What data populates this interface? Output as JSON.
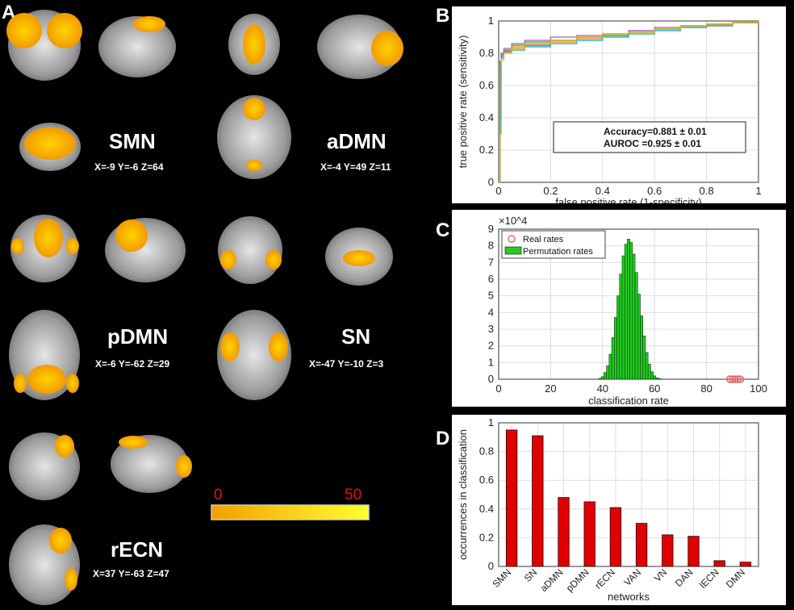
{
  "panel_a": {
    "letter": "A",
    "networks": [
      {
        "name": "SMN",
        "coords": "X=-9 Y=-6 Z=64"
      },
      {
        "name": "aDMN",
        "coords": "X=-4 Y=49 Z=11"
      },
      {
        "name": "pDMN",
        "coords": "X=-6 Y=-62 Z=29"
      },
      {
        "name": "SN",
        "coords": "X=-47 Y=-10 Z=3"
      },
      {
        "name": "rECN",
        "coords": "X=37 Y=-63 Z=47"
      }
    ],
    "colorbar": {
      "min": "0",
      "max": "50"
    }
  },
  "colors": {
    "activation": "#f5a300",
    "bar": "#e00000",
    "hist": "#22cc22",
    "real_rate": "#e06a6a"
  },
  "chart_data": [
    {
      "panel": "B",
      "type": "line",
      "xlabel": "false positive rate (1-specificity)",
      "ylabel": "true positive rate (sensitivity)",
      "xlim": [
        0,
        1
      ],
      "ylim": [
        0,
        1
      ],
      "xticks": [
        "0",
        "0.2",
        "0.4",
        "0.6",
        "0.8",
        "1"
      ],
      "yticks": [
        "0",
        "0.2",
        "0.4",
        "0.6",
        "0.8",
        "1"
      ],
      "grid": true,
      "annotation": [
        "Accuracy=0.881 ± 0.01",
        "AUROC   =0.925 ± 0.01"
      ],
      "series": [
        {
          "color": "#1f77b4",
          "x": [
            0,
            0.005,
            0.01,
            0.02,
            0.05,
            0.1,
            0.2,
            0.3,
            0.4,
            0.5,
            0.6,
            0.7,
            0.8,
            0.9,
            1
          ],
          "y": [
            0,
            0.7,
            0.78,
            0.81,
            0.82,
            0.84,
            0.86,
            0.88,
            0.9,
            0.92,
            0.94,
            0.96,
            0.97,
            0.99,
            1
          ]
        },
        {
          "color": "#ff7f0e",
          "x": [
            0,
            0.005,
            0.01,
            0.02,
            0.05,
            0.1,
            0.2,
            0.3,
            0.4,
            0.5,
            0.6,
            0.7,
            0.8,
            0.9,
            1
          ],
          "y": [
            0,
            0.4,
            0.8,
            0.82,
            0.84,
            0.86,
            0.87,
            0.89,
            0.91,
            0.93,
            0.95,
            0.96,
            0.98,
            0.99,
            1
          ]
        },
        {
          "color": "#2ca02c",
          "x": [
            0,
            0.005,
            0.01,
            0.02,
            0.05,
            0.1,
            0.2,
            0.3,
            0.4,
            0.5,
            0.6,
            0.7,
            0.8,
            0.9,
            1
          ],
          "y": [
            0,
            0.75,
            0.8,
            0.82,
            0.85,
            0.87,
            0.88,
            0.9,
            0.91,
            0.93,
            0.95,
            0.97,
            0.98,
            0.99,
            1
          ]
        },
        {
          "color": "#d62728",
          "x": [
            0,
            0.005,
            0.01,
            0.02,
            0.05,
            0.1,
            0.2,
            0.3,
            0.4,
            0.5,
            0.6,
            0.7,
            0.8,
            0.9,
            1
          ],
          "y": [
            0,
            0.65,
            0.79,
            0.81,
            0.83,
            0.85,
            0.88,
            0.9,
            0.92,
            0.94,
            0.95,
            0.97,
            0.98,
            0.99,
            1
          ]
        },
        {
          "color": "#9467bd",
          "x": [
            0,
            0.005,
            0.01,
            0.02,
            0.05,
            0.1,
            0.2,
            0.3,
            0.4,
            0.5,
            0.6,
            0.7,
            0.8,
            0.9,
            1
          ],
          "y": [
            0,
            0.72,
            0.8,
            0.83,
            0.86,
            0.88,
            0.9,
            0.91,
            0.92,
            0.94,
            0.96,
            0.97,
            0.98,
            0.99,
            1
          ]
        },
        {
          "color": "#17becf",
          "x": [
            0,
            0.005,
            0.01,
            0.02,
            0.05,
            0.1,
            0.2,
            0.3,
            0.4,
            0.5,
            0.6,
            0.7,
            0.8,
            0.9,
            1
          ],
          "y": [
            0,
            0.68,
            0.77,
            0.8,
            0.82,
            0.84,
            0.86,
            0.88,
            0.9,
            0.92,
            0.94,
            0.96,
            0.98,
            0.99,
            1
          ]
        },
        {
          "color": "#e8b400",
          "x": [
            0,
            0.005,
            0.01,
            0.02,
            0.05,
            0.1,
            0.2,
            0.3,
            0.4,
            0.5,
            0.6,
            0.7,
            0.8,
            0.9,
            1
          ],
          "y": [
            0,
            0.3,
            0.76,
            0.8,
            0.83,
            0.86,
            0.88,
            0.9,
            0.92,
            0.93,
            0.95,
            0.97,
            0.98,
            0.99,
            1
          ]
        }
      ]
    },
    {
      "panel": "C",
      "type": "bar",
      "xlabel": "classification rate",
      "exponent": "×10^4",
      "xlim": [
        0,
        100
      ],
      "ylim": [
        0,
        9
      ],
      "xticks": [
        "0",
        "20",
        "40",
        "60",
        "80",
        "100"
      ],
      "yticks": [
        "0",
        "1",
        "2",
        "3",
        "4",
        "5",
        "6",
        "7",
        "8",
        "9"
      ],
      "grid": true,
      "legend": [
        "Real rates",
        "Permutation rates"
      ],
      "legend_position": "top-left",
      "hist_x": [
        39,
        40,
        41,
        42,
        43,
        44,
        45,
        46,
        47,
        48,
        49,
        50,
        51,
        52,
        53,
        54,
        55,
        56,
        57,
        58,
        59,
        60,
        61,
        62
      ],
      "hist_y": [
        0.05,
        0.15,
        0.4,
        0.8,
        1.5,
        2.5,
        3.7,
        5.0,
        6.3,
        7.4,
        8.1,
        8.4,
        8.2,
        7.5,
        6.4,
        5.1,
        3.8,
        2.6,
        1.6,
        0.9,
        0.45,
        0.2,
        0.08,
        0.03
      ],
      "real_rates": [
        89,
        90,
        91,
        92,
        93
      ]
    },
    {
      "panel": "D",
      "type": "bar",
      "xlabel": "networks",
      "ylabel": "occurrences in classification",
      "ylim": [
        0,
        1
      ],
      "yticks": [
        "0",
        "0.2",
        "0.4",
        "0.6",
        "0.8",
        "1"
      ],
      "grid": true,
      "categories": [
        "SMN",
        "SN",
        "aDMN",
        "pDMN",
        "rECN",
        "VAN",
        "VN",
        "DAN",
        "lECN",
        "DMN"
      ],
      "values": [
        0.95,
        0.91,
        0.48,
        0.45,
        0.41,
        0.3,
        0.22,
        0.21,
        0.04,
        0.03
      ]
    }
  ]
}
